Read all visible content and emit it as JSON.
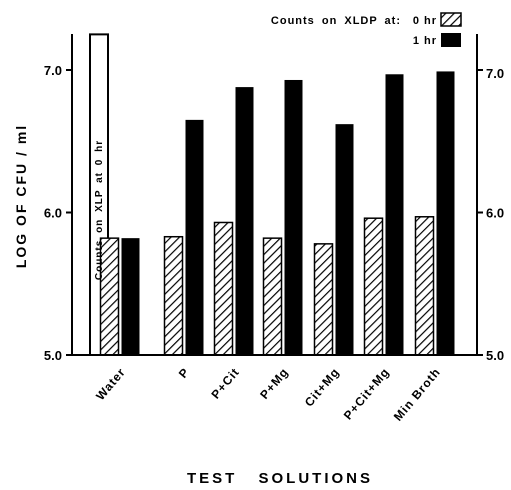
{
  "chart_data": {
    "type": "bar",
    "title": "",
    "xlabel": "TEST SOLUTIONS",
    "ylabel": "LOG OF CFU / ml",
    "ylim": [
      5.0,
      7.3
    ],
    "yticks": [
      5.0,
      6.0,
      7.0
    ],
    "ytick_labels": [
      "5.0",
      "6.0",
      "7.0"
    ],
    "grid": false,
    "legend_placement": "top-right",
    "legend_title": "Counts on XLDP at:",
    "categories": [
      "Water",
      "P",
      "P+Cit",
      "P+Mg",
      "Cit+Mg",
      "P+Cit+Mg",
      "Min Broth"
    ],
    "series": [
      {
        "name": "0 hr",
        "values": [
          5.82,
          5.83,
          5.93,
          5.82,
          5.78,
          5.96,
          5.97
        ],
        "fill": "hatched"
      },
      {
        "name": "1 hr",
        "values": [
          5.82,
          6.65,
          6.88,
          6.93,
          6.62,
          6.97,
          6.99
        ],
        "fill": "black"
      }
    ],
    "extra_bar": {
      "category": "Water",
      "label": "Counts on XLP at 0 hr",
      "value": 7.25,
      "fill": "white"
    }
  }
}
